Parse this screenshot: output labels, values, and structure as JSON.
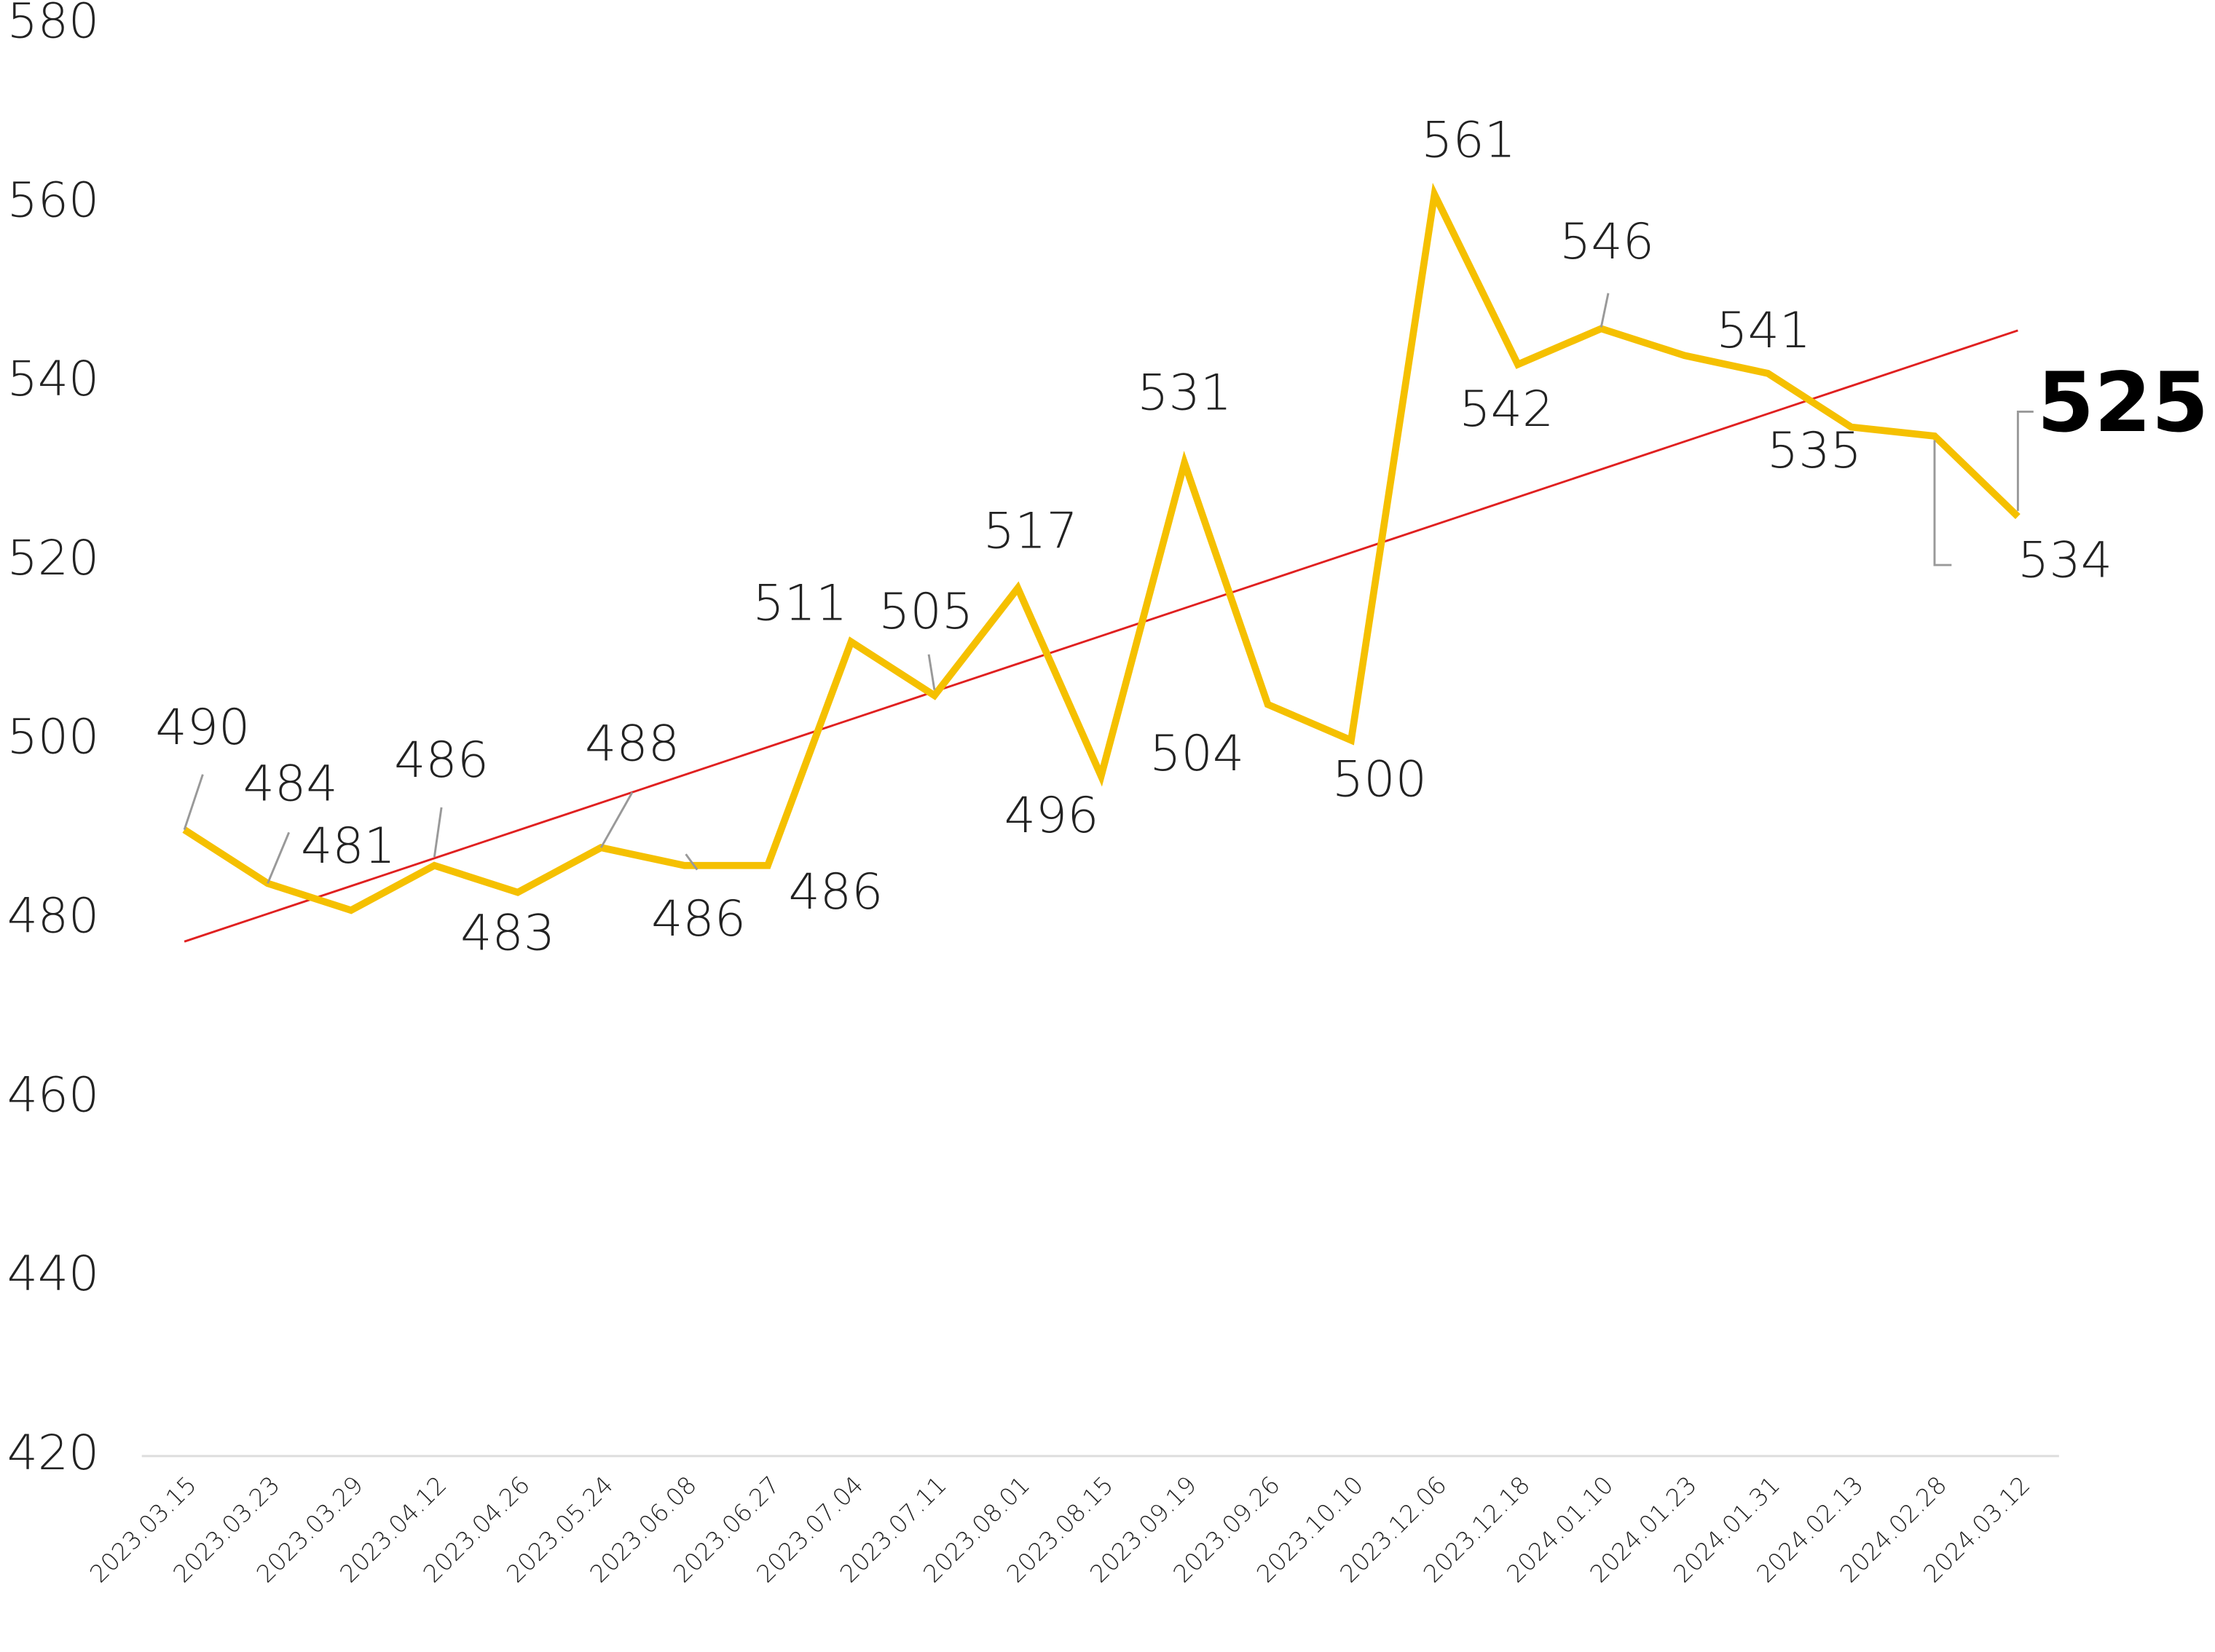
{
  "chart_data": {
    "type": "line",
    "categories": [
      "2023.03.15",
      "2023.03.23",
      "2023.03.29",
      "2023.04.12",
      "2023.04.26",
      "2023.05.24",
      "2023.06.08",
      "2023.06.27",
      "2023.07.04",
      "2023.07.11",
      "2023.08.01",
      "2023.08.15",
      "2023.09.19",
      "2023.09.26",
      "2023.10.10",
      "2023.12.06",
      "2023.12.18",
      "2024.01.10",
      "2024.01.23",
      "2024.01.31",
      "2024.02.13",
      "2024.02.28",
      "2024.03.12"
    ],
    "series": [
      {
        "color": "#f5c000",
        "values": [
          490,
          484,
          481,
          486,
          483,
          488,
          486,
          486,
          511,
          505,
          517,
          496,
          531,
          504,
          500,
          561,
          542,
          546,
          543,
          541,
          535,
          534,
          525
        ],
        "value_labels": [
          "490",
          "484",
          "481",
          "486",
          "483",
          "488",
          "486",
          "486",
          "511",
          "505",
          "517",
          "496",
          "531",
          "504",
          "500",
          "561",
          "542",
          "546",
          null,
          "541",
          "535",
          "534",
          "525"
        ]
      }
    ],
    "trendline": {
      "color": "#e02020",
      "values": [
        477.5,
        545.8
      ]
    },
    "ylim": [
      420,
      580
    ],
    "yticks": [
      420,
      440,
      460,
      480,
      500,
      520,
      540,
      560,
      580
    ],
    "grid": false
  }
}
